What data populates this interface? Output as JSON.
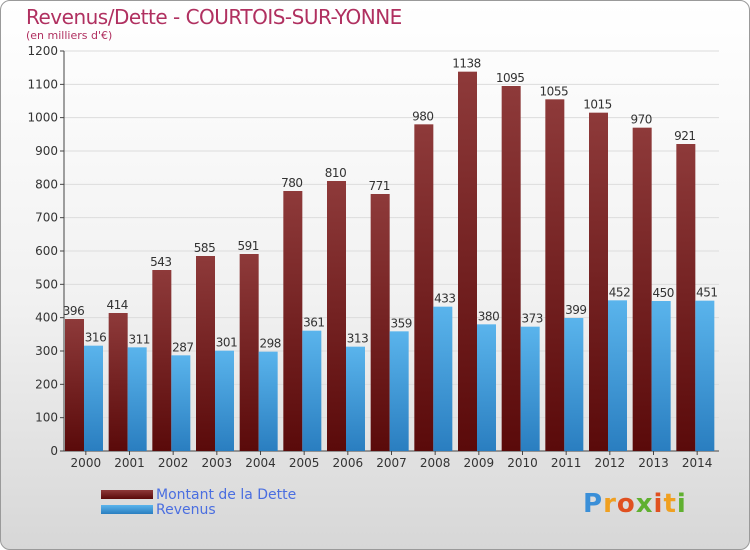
{
  "colors": {
    "dette_dark": "#5a0a0a",
    "dette_light": "#8e3a3a",
    "revenus_dark": "#2a7ec0",
    "revenus_light": "#5ab4ec",
    "title": "#b03060",
    "legend_text": "#4a6ee0"
  },
  "chart_data": {
    "type": "bar",
    "title": "Revenus/Dette - COURTOIS-SUR-YONNE",
    "subtitle": "(en milliers d'€)",
    "categories": [
      "2000",
      "2001",
      "2002",
      "2003",
      "2004",
      "2005",
      "2006",
      "2007",
      "2008",
      "2009",
      "2010",
      "2011",
      "2012",
      "2013",
      "2014"
    ],
    "series": [
      {
        "name": "Montant de la Dette",
        "values": [
          396,
          414,
          543,
          585,
          591,
          780,
          810,
          771,
          980,
          1138,
          1095,
          1055,
          1015,
          970,
          921
        ]
      },
      {
        "name": "Revenus",
        "values": [
          316,
          311,
          287,
          301,
          298,
          361,
          313,
          359,
          433,
          380,
          373,
          399,
          452,
          450,
          451
        ]
      }
    ],
    "ylim": [
      0,
      1200
    ],
    "yticks": [
      0,
      100,
      200,
      300,
      400,
      500,
      600,
      700,
      800,
      900,
      1000,
      1100,
      1200
    ],
    "grid": true,
    "legend_position": "bottom-left"
  },
  "logo": {
    "text": "Proxiti"
  }
}
